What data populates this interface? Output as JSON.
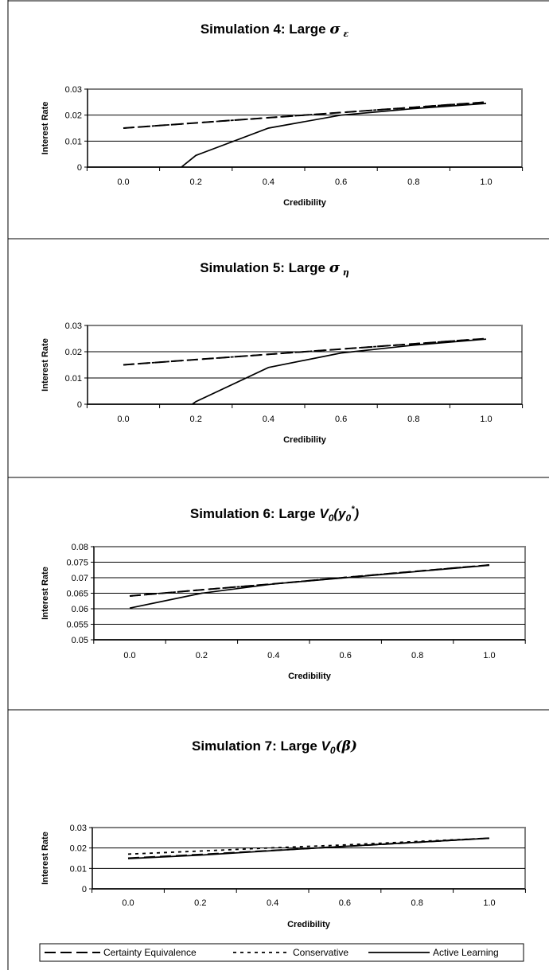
{
  "chart_data": [
    {
      "type": "line",
      "title": "Simulation 4: Large",
      "title_symbol": "σ",
      "title_sub": "ε",
      "xlabel": "Credibility",
      "ylabel": "Interest Rate",
      "categories": [
        "0.0",
        "0.2",
        "0.4",
        "0.6",
        "0.8",
        "1.0"
      ],
      "x": [
        0.0,
        0.2,
        0.4,
        0.6,
        0.8,
        1.0
      ],
      "ylim": [
        0,
        0.03
      ],
      "yticks": [
        "0",
        "0.01",
        "0.02",
        "0.03"
      ],
      "series": [
        {
          "name": "Certainty Equivalence",
          "style": "dashed",
          "x": [
            0.0,
            0.2,
            0.4,
            0.6,
            0.8,
            1.0
          ],
          "values": [
            0.015,
            0.017,
            0.019,
            0.021,
            0.023,
            0.025
          ]
        },
        {
          "name": "Conservative",
          "style": "dotted",
          "x": [
            0.0,
            0.2,
            0.4,
            0.6,
            0.8,
            1.0
          ],
          "values": [
            0.015,
            0.017,
            0.019,
            0.021,
            0.023,
            0.025
          ]
        },
        {
          "name": "Active Learning",
          "style": "solid",
          "x": [
            0.16,
            0.2,
            0.4,
            0.6,
            0.8,
            1.0
          ],
          "values": [
            0.0,
            0.0045,
            0.015,
            0.02,
            0.0225,
            0.0245
          ]
        }
      ]
    },
    {
      "type": "line",
      "title": "Simulation 5: Large",
      "title_symbol": "σ",
      "title_sub": "η",
      "xlabel": "Credibility",
      "ylabel": "Interest Rate",
      "categories": [
        "0.0",
        "0.2",
        "0.4",
        "0.6",
        "0.8",
        "1.0"
      ],
      "x": [
        0.0,
        0.2,
        0.4,
        0.6,
        0.8,
        1.0
      ],
      "ylim": [
        0,
        0.03
      ],
      "yticks": [
        "0",
        "0.01",
        "0.02",
        "0.03"
      ],
      "series": [
        {
          "name": "Certainty Equivalence",
          "style": "dashed",
          "x": [
            0.0,
            0.2,
            0.4,
            0.6,
            0.8,
            1.0
          ],
          "values": [
            0.015,
            0.017,
            0.019,
            0.021,
            0.023,
            0.025
          ]
        },
        {
          "name": "Conservative",
          "style": "dotted",
          "x": [
            0.0,
            0.2,
            0.4,
            0.6,
            0.8,
            1.0
          ],
          "values": [
            0.015,
            0.017,
            0.019,
            0.021,
            0.023,
            0.025
          ]
        },
        {
          "name": "Active Learning",
          "style": "solid",
          "x": [
            0.19,
            0.2,
            0.4,
            0.6,
            0.8,
            1.0
          ],
          "values": [
            0.0,
            0.001,
            0.014,
            0.0195,
            0.0225,
            0.0248
          ]
        }
      ]
    },
    {
      "type": "line",
      "title": "Simulation 6: Large",
      "title_symbol": "V",
      "title_sub": "0",
      "title_tail": "(y",
      "title_tail_sub": "0",
      "title_tail_sup": "*",
      "title_close": ")",
      "xlabel": "Credibility",
      "ylabel": "Interest Rate",
      "categories": [
        "0.0",
        "0.2",
        "0.4",
        "0.6",
        "0.8",
        "1.0"
      ],
      "x": [
        0.0,
        0.2,
        0.4,
        0.6,
        0.8,
        1.0
      ],
      "ylim": [
        0.05,
        0.08
      ],
      "yticks": [
        "0.05",
        "0.055",
        "0.06",
        "0.065",
        "0.07",
        "0.075",
        "0.08"
      ],
      "series": [
        {
          "name": "Certainty Equivalence",
          "style": "dashed",
          "x": [
            0.0,
            0.2,
            0.4,
            0.6,
            0.8,
            1.0
          ],
          "values": [
            0.0641,
            0.0661,
            0.068,
            0.0701,
            0.0721,
            0.0741
          ]
        },
        {
          "name": "Conservative",
          "style": "dotted",
          "x": [
            0.0,
            0.2,
            0.4,
            0.6,
            0.8,
            1.0
          ],
          "values": [
            0.0641,
            0.0661,
            0.068,
            0.0701,
            0.0721,
            0.0741
          ]
        },
        {
          "name": "Active Learning",
          "style": "solid",
          "x": [
            0.0,
            0.2,
            0.4,
            0.6,
            0.8,
            1.0
          ],
          "values": [
            0.0602,
            0.065,
            0.068,
            0.07,
            0.072,
            0.074
          ]
        }
      ]
    },
    {
      "type": "line",
      "title": "Simulation 7: Large",
      "title_symbol": "V",
      "title_sub": "0",
      "title_tail": "(β)",
      "xlabel": "Credibility",
      "ylabel": "Interest Rate",
      "categories": [
        "0.0",
        "0.2",
        "0.4",
        "0.6",
        "0.8",
        "1.0"
      ],
      "x": [
        0.0,
        0.2,
        0.4,
        0.6,
        0.8,
        1.0
      ],
      "ylim": [
        0,
        0.03
      ],
      "yticks": [
        "0",
        "0.01",
        "0.02",
        "0.03"
      ],
      "series": [
        {
          "name": "Certainty Equivalence",
          "style": "dashed",
          "x": [
            0.0,
            0.2,
            0.4,
            0.6,
            0.8,
            1.0
          ],
          "values": [
            0.015,
            0.0168,
            0.0188,
            0.0208,
            0.0228,
            0.0248
          ]
        },
        {
          "name": "Conservative",
          "style": "dotted",
          "x": [
            0.0,
            0.2,
            0.4,
            0.6,
            0.8,
            1.0
          ],
          "values": [
            0.017,
            0.0185,
            0.0201,
            0.0215,
            0.0232,
            0.0248
          ]
        },
        {
          "name": "Active Learning",
          "style": "solid",
          "x": [
            0.0,
            0.2,
            0.4,
            0.6,
            0.8,
            1.0
          ],
          "values": [
            0.0148,
            0.0165,
            0.0187,
            0.0208,
            0.0228,
            0.0248
          ]
        }
      ]
    }
  ],
  "legend": {
    "items": [
      "Certainty Equivalence",
      "Conservative",
      "Active Learning"
    ]
  }
}
